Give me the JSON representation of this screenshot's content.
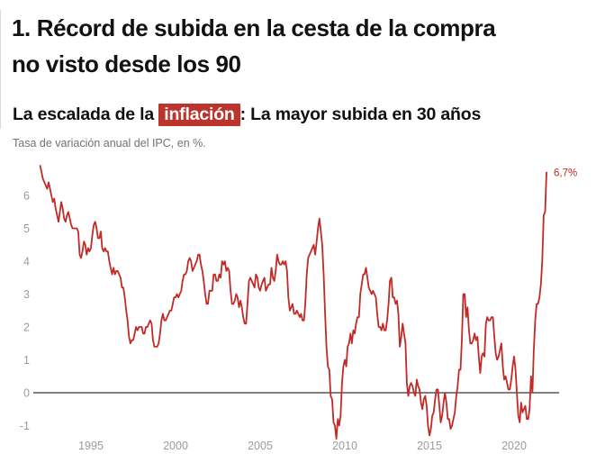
{
  "header": {
    "title_lines": [
      "1. Récord de subida en la cesta de la compra",
      "no visto desde los 90"
    ]
  },
  "chart_data": {
    "type": "line",
    "title_parts": {
      "prefix": "La escalada de la ",
      "highlight": "inflación",
      "suffix": ": La mayor subida en 30 años"
    },
    "caption": "Tasa de variación anual del IPC, en %.",
    "unit": "%",
    "frequency": "monthly",
    "start_year": 1992,
    "series_name": "IPC, tasa de variación anual (%)",
    "values": [
      [
        6.9,
        6.7,
        6.5,
        6.4,
        6.3,
        6.2,
        6.4,
        6.2,
        6.0,
        5.8,
        5.9,
        5.6
      ],
      [
        5.4,
        5.2,
        5.5,
        5.8,
        5.6,
        5.3,
        5.2,
        5.4,
        5.5,
        5.3,
        5.1,
        5.0
      ],
      [
        5.0,
        5.0,
        5.0,
        4.9,
        4.2,
        4.1,
        4.3,
        4.6,
        4.5,
        4.2,
        4.4,
        4.3
      ],
      [
        4.4,
        4.8,
        5.1,
        5.2,
        5.0,
        4.7,
        4.7,
        4.9,
        4.4,
        4.3,
        4.4,
        4.3
      ],
      [
        4.3,
        4.0,
        3.8,
        3.6,
        3.8,
        3.6,
        3.7,
        3.7,
        3.6,
        3.5,
        3.2,
        3.2
      ],
      [
        2.9,
        2.5,
        2.2,
        1.7,
        1.5,
        1.6,
        1.6,
        1.8,
        2.0,
        1.9,
        2.0,
        2.0
      ],
      [
        2.0,
        1.8,
        1.8,
        2.0,
        2.0,
        2.1,
        2.2,
        2.1,
        1.6,
        1.4,
        1.4,
        1.4
      ],
      [
        1.5,
        1.8,
        2.2,
        2.4,
        2.2,
        2.2,
        2.3,
        2.4,
        2.5,
        2.5,
        2.7,
        2.9
      ],
      [
        2.9,
        3.0,
        2.9,
        3.0,
        3.1,
        3.4,
        3.6,
        3.6,
        3.7,
        4.0,
        4.1,
        4.0
      ],
      [
        3.7,
        3.8,
        3.9,
        4.0,
        4.2,
        4.2,
        3.9,
        3.7,
        3.4,
        3.0,
        2.7,
        2.7
      ],
      [
        3.1,
        3.1,
        3.1,
        3.6,
        3.6,
        3.4,
        3.4,
        3.6,
        3.5,
        4.0,
        3.9,
        4.0
      ],
      [
        3.7,
        3.8,
        3.7,
        3.1,
        2.7,
        2.7,
        2.8,
        3.0,
        2.9,
        2.6,
        2.8,
        2.6
      ],
      [
        2.3,
        2.1,
        2.1,
        2.7,
        3.4,
        3.5,
        3.4,
        3.3,
        3.2,
        3.6,
        3.5,
        3.2
      ],
      [
        3.1,
        3.3,
        3.4,
        3.5,
        3.1,
        3.2,
        3.3,
        3.3,
        3.8,
        3.5,
        3.4,
        3.7
      ],
      [
        4.2,
        4.0,
        3.9,
        3.9,
        4.0,
        3.9,
        4.0,
        3.7,
        2.9,
        2.5,
        2.6,
        2.7
      ],
      [
        2.4,
        2.4,
        2.5,
        2.4,
        2.3,
        2.4,
        2.2,
        2.2,
        2.7,
        3.6,
        4.1,
        4.2
      ],
      [
        4.3,
        4.4,
        4.5,
        4.2,
        4.6,
        5.0,
        5.3,
        4.9,
        4.5,
        3.6,
        2.4,
        1.4
      ],
      [
        0.8,
        0.7,
        -0.1,
        -0.2,
        -0.9,
        -1.0,
        -1.4,
        -0.8,
        -1.0,
        -0.7,
        0.3,
        0.8
      ],
      [
        1.0,
        0.8,
        1.4,
        1.5,
        1.8,
        1.5,
        1.9,
        1.8,
        2.1,
        2.3,
        2.3,
        3.0
      ],
      [
        3.3,
        3.6,
        3.6,
        3.8,
        3.5,
        3.2,
        3.1,
        3.0,
        3.1,
        3.0,
        2.9,
        2.4
      ],
      [
        2.0,
        2.0,
        1.9,
        2.1,
        1.9,
        1.9,
        2.2,
        2.7,
        3.4,
        3.5,
        2.9,
        2.9
      ],
      [
        2.7,
        2.8,
        2.4,
        1.4,
        1.7,
        2.1,
        1.8,
        1.5,
        0.3,
        -0.1,
        0.2,
        0.3
      ],
      [
        0.2,
        0.0,
        -0.1,
        0.4,
        0.2,
        0.1,
        -0.3,
        -0.5,
        -0.2,
        -0.1,
        -0.4,
        -1.0
      ],
      [
        -1.3,
        -1.1,
        -0.7,
        -0.6,
        -0.2,
        0.1,
        0.1,
        -0.4,
        -0.9,
        -0.7,
        -0.3,
        0.0
      ],
      [
        -0.3,
        -0.8,
        -0.8,
        -1.1,
        -1.0,
        -0.8,
        -0.6,
        -0.1,
        0.2,
        0.7,
        0.7,
        1.6
      ],
      [
        3.0,
        3.0,
        2.3,
        2.6,
        1.9,
        1.5,
        1.5,
        1.6,
        1.8,
        1.6,
        1.7,
        1.1
      ],
      [
        0.6,
        1.1,
        1.2,
        1.1,
        2.1,
        2.3,
        2.2,
        2.2,
        2.3,
        2.3,
        1.7,
        1.2
      ],
      [
        1.0,
        1.1,
        1.3,
        1.5,
        0.8,
        0.4,
        0.5,
        0.3,
        0.1,
        0.1,
        0.4,
        0.8
      ],
      [
        1.1,
        0.7,
        0.0,
        -0.7,
        -0.9,
        -0.3,
        -0.6,
        -0.5,
        -0.4,
        -0.8,
        -0.8,
        -0.5
      ],
      [
        0.5,
        0.0,
        1.3,
        2.2,
        2.7,
        2.7,
        2.9,
        3.3,
        4.0,
        5.4,
        5.5,
        6.7
      ]
    ],
    "yticks": [
      -1,
      0,
      1,
      2,
      3,
      4,
      5,
      6
    ],
    "xticks": [
      1995,
      2000,
      2005,
      2010,
      2015,
      2020
    ],
    "ylim": [
      -1.6,
      7.1
    ],
    "grid": false,
    "legend": "none",
    "zero_line": true,
    "annotation": {
      "label": "6,7%",
      "value": 6.7
    },
    "colors": {
      "line": "#c22a26",
      "highlight_bg": "#bd342c",
      "zero_line": "#000000",
      "axis_labels": "#9b9b9b",
      "title": "#121212",
      "caption": "#737373",
      "annotation": "#c22a26"
    }
  }
}
